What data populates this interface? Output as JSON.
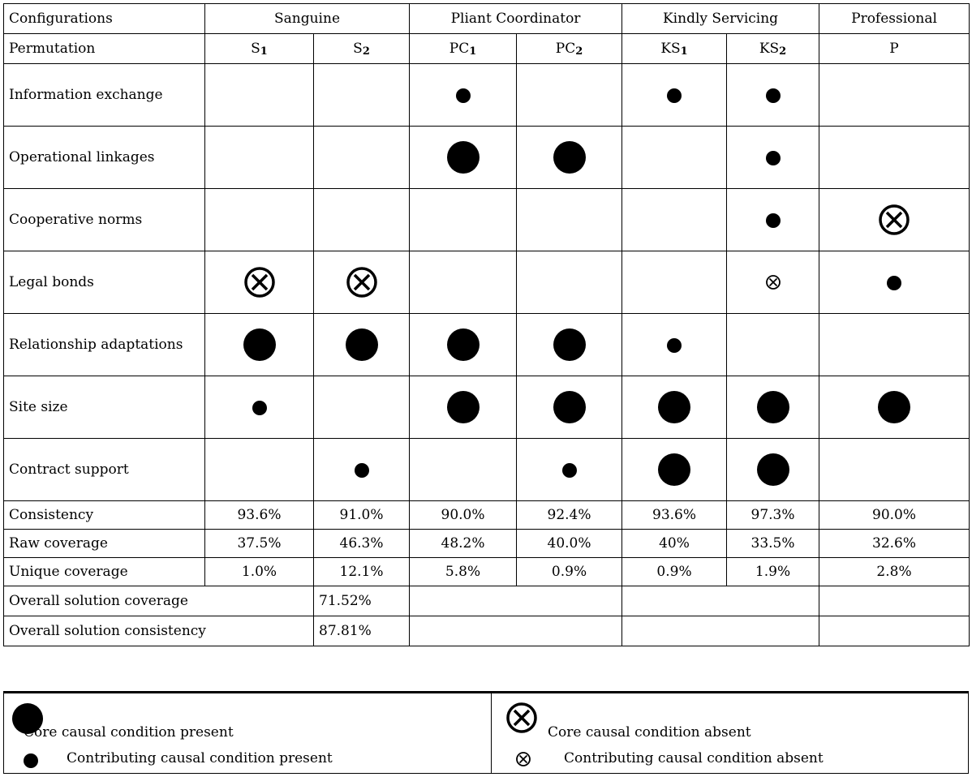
{
  "header": {
    "configurations_label": "Configurations",
    "groups": [
      "Sanguine",
      "Pliant Coordinator",
      "Kindly Servicing",
      "Professional"
    ],
    "permutation_label": "Permutation",
    "permutations": [
      {
        "base": "S",
        "sub": "1"
      },
      {
        "base": "S",
        "sub": "2"
      },
      {
        "base": "PC",
        "sub": "1"
      },
      {
        "base": "PC",
        "sub": "2"
      },
      {
        "base": "KS",
        "sub": "1"
      },
      {
        "base": "KS",
        "sub": "2"
      },
      {
        "base": "P",
        "sub": ""
      }
    ]
  },
  "conditions": [
    {
      "label": "Information exchange",
      "marks": [
        "",
        "",
        "contrib-present",
        "",
        "contrib-present",
        "contrib-present",
        ""
      ]
    },
    {
      "label": "Operational linkages",
      "marks": [
        "",
        "",
        "core-present",
        "core-present",
        "",
        "contrib-present",
        ""
      ]
    },
    {
      "label": "Cooperative norms",
      "marks": [
        "",
        "",
        "",
        "",
        "",
        "contrib-present",
        "core-absent"
      ]
    },
    {
      "label": "Legal bonds",
      "marks": [
        "core-absent",
        "core-absent",
        "",
        "",
        "",
        "contrib-absent",
        "contrib-present"
      ]
    },
    {
      "label": "Relationship adaptations",
      "marks": [
        "core-present",
        "core-present",
        "core-present",
        "core-present",
        "contrib-present",
        "",
        ""
      ]
    },
    {
      "label": "Site size",
      "marks": [
        "contrib-present",
        "",
        "core-present",
        "core-present",
        "core-present",
        "core-present",
        "core-present"
      ]
    },
    {
      "label": "Contract support",
      "marks": [
        "",
        "contrib-present",
        "",
        "contrib-present",
        "core-present",
        "core-present",
        ""
      ]
    }
  ],
  "metrics": [
    {
      "label": "Consistency",
      "values": [
        "93.6%",
        "91.0%",
        "90.0%",
        "92.4%",
        "93.6%",
        "97.3%",
        "90.0%"
      ]
    },
    {
      "label": "Raw coverage",
      "values": [
        "37.5%",
        "46.3%",
        "48.2%",
        "40.0%",
        "40%",
        "33.5%",
        "32.6%"
      ]
    },
    {
      "label": "Unique coverage",
      "values": [
        "1.0%",
        "12.1%",
        "5.8%",
        "0.9%",
        "0.9%",
        "1.9%",
        "2.8%"
      ]
    }
  ],
  "overall": [
    {
      "label": "Overall solution coverage",
      "value": "71.52%"
    },
    {
      "label": "Overall solution consistency",
      "value": "87.81%"
    }
  ],
  "legend": {
    "core_present": "Core causal condition present",
    "contrib_present": "Contributing causal condition present",
    "core_absent": "Core causal condition absent",
    "contrib_absent": "Contributing causal condition absent"
  }
}
